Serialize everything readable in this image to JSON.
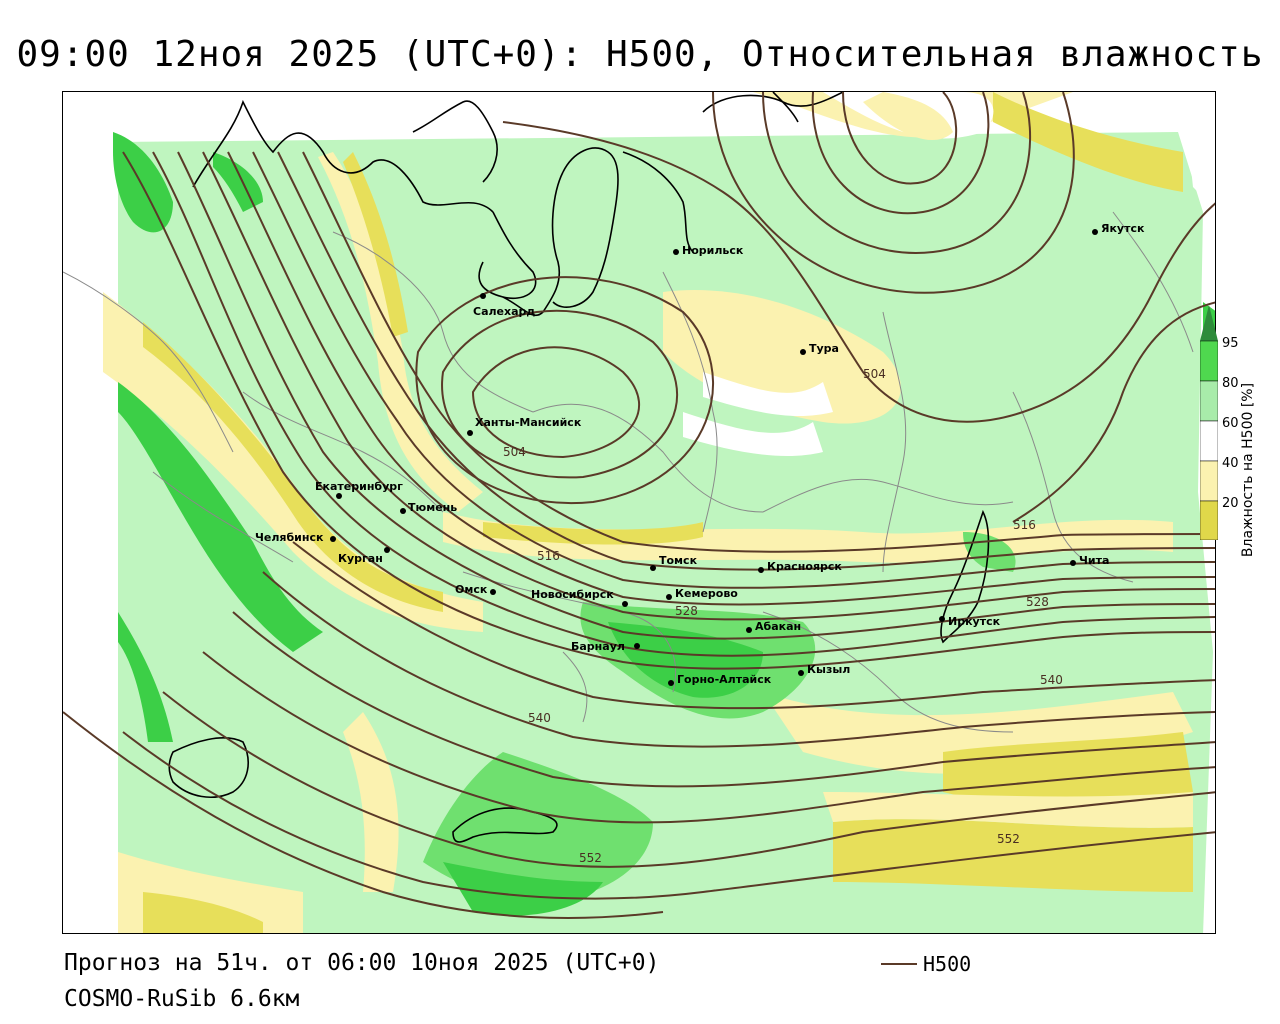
{
  "title": "09:00 12ноя 2025 (UTC+0): H500, Относительная влажность",
  "footer": {
    "forecast": "Прогноз на 51ч. от 06:00 10ноя 2025 (UTC+0)",
    "model": "COSMO-RuSib 6.6км"
  },
  "legend": {
    "contour_label": "H500"
  },
  "colorbar": {
    "title": "Влажность на H500 [%]",
    "ticks": [
      "95",
      "80",
      "60",
      "40",
      "20"
    ],
    "colors": [
      "#2e8b3a",
      "#4fd84f",
      "#a8ecaa",
      "#ffffff",
      "#fbf2b0",
      "#e0d84a"
    ]
  },
  "colors": {
    "contour": "#5a3a28",
    "coast": "#000000",
    "border": "#8a8a8a",
    "light_green": "#bff5bf",
    "mid_green": "#6fe06f",
    "dark_green": "#3ccf47",
    "light_yellow": "#fbf2b0",
    "yellow": "#e7df5a"
  },
  "cities": [
    "Якутск",
    "Норильск",
    "Салехард",
    "Тура",
    "Ханты-Мансийск",
    "Екатеринбург",
    "Тюмень",
    "Челябинск",
    "Курган",
    "Омск",
    "Томск",
    "Красноярск",
    "Новосибирск",
    "Кемерово",
    "Абакан",
    "Барнаул",
    "Горно-Алтайск",
    "Кызыл",
    "Иркутск",
    "Чита"
  ],
  "contour_labels": [
    "504",
    "504",
    "516",
    "516",
    "528",
    "528",
    "540",
    "540",
    "552",
    "552"
  ]
}
